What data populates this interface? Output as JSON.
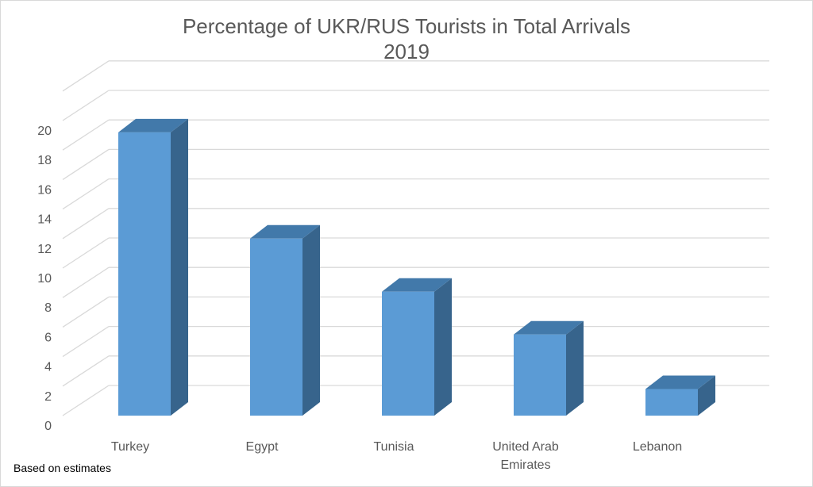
{
  "chart_data": {
    "type": "bar",
    "title": "Percentage of UKR/RUS Tourists in Total Arrivals",
    "subtitle": "2019",
    "categories": [
      "Turkey",
      "Egypt",
      "Tunisia",
      "United Arab Emirates",
      "Lebanon"
    ],
    "category_lines": [
      [
        "Turkey"
      ],
      [
        "Egypt"
      ],
      [
        "Tunisia"
      ],
      [
        "United Arab",
        "Emirates"
      ],
      [
        "Lebanon"
      ]
    ],
    "values": [
      19.2,
      12.0,
      8.4,
      5.5,
      1.8
    ],
    "yticks": [
      "0",
      "2",
      "4",
      "6",
      "8",
      "10",
      "12",
      "14",
      "16",
      "18",
      "20"
    ],
    "ylim": [
      0,
      22
    ],
    "grid": true,
    "legend": "none",
    "colors": {
      "bar_front": "#5b9bd5",
      "bar_side": "#37648c",
      "bar_top": "#4279aa",
      "grid": "#d9d9d9"
    }
  },
  "footnote": "Based on estimates"
}
